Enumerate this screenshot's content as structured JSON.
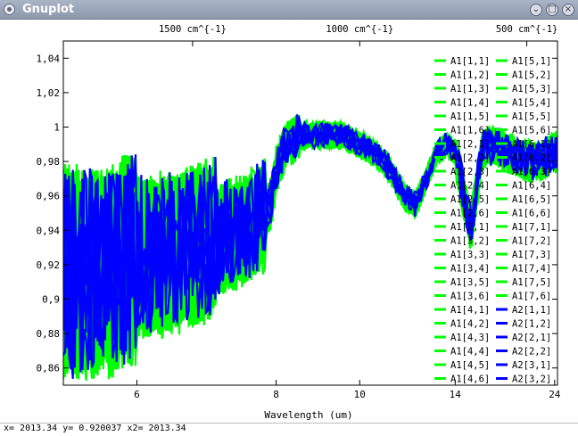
{
  "window": {
    "title": "Gnuplot"
  },
  "status": "x= 2013.34 y= 0.920037 x2= 2013.34",
  "colors": {
    "series_a1": "#00ff00",
    "series_a2": "#0000ff",
    "background": "#ffffff"
  },
  "chart_data": {
    "type": "line",
    "xlabel": "Wavelength (um)",
    "ylabel": "",
    "x_scale": "reciprocal",
    "xlim": [
      5.3,
      24.5
    ],
    "ylim": [
      0.85,
      1.05
    ],
    "grid": false,
    "legend_position": "top-right",
    "x_ticks": [
      6,
      8,
      10,
      14,
      24
    ],
    "x_tick_labels": [
      "6",
      "8",
      "10",
      "14",
      "24"
    ],
    "x2_ticks": [
      1500,
      1000,
      500
    ],
    "x2_tick_labels": [
      "1500 cm^{-1}",
      "1000 cm^{-1}",
      "500 cm^{-1}"
    ],
    "y_ticks": [
      0.86,
      0.88,
      0.9,
      0.92,
      0.94,
      0.96,
      0.98,
      1.0,
      1.02,
      1.04
    ],
    "y_tick_labels": [
      "0,86",
      "0,88",
      "0,9",
      "0,92",
      "0,94",
      "0,96",
      "0,98",
      "1",
      "1,02",
      "1,04"
    ],
    "profile": {
      "x": [
        5.4,
        5.7,
        6.0,
        6.3,
        6.6,
        7.0,
        7.4,
        7.7,
        7.9,
        8.0,
        8.2,
        8.5,
        9.0,
        9.5,
        10.0,
        10.5,
        11.0,
        11.5,
        12.0,
        12.5,
        13.0,
        13.5,
        14.0,
        14.5,
        15.0,
        15.3,
        15.8,
        16.2,
        17.0,
        18.0,
        20.0,
        22.0,
        23.5,
        24.0
      ],
      "y": [
        0.915,
        0.915,
        0.925,
        0.925,
        0.93,
        0.935,
        0.94,
        0.945,
        0.955,
        0.975,
        0.99,
        0.995,
        0.995,
        0.995,
        0.99,
        0.985,
        0.975,
        0.96,
        0.955,
        0.97,
        0.985,
        0.99,
        0.985,
        0.96,
        0.94,
        0.96,
        0.985,
        0.99,
        0.988,
        0.985,
        0.98,
        0.98,
        0.985,
        0.985
      ]
    },
    "series": [
      {
        "name": "A1[1,1]",
        "group": "A1"
      },
      {
        "name": "A1[1,2]",
        "group": "A1"
      },
      {
        "name": "A1[1,3]",
        "group": "A1"
      },
      {
        "name": "A1[1,4]",
        "group": "A1"
      },
      {
        "name": "A1[1,5]",
        "group": "A1"
      },
      {
        "name": "A1[1,6]",
        "group": "A1"
      },
      {
        "name": "A1[2,1]",
        "group": "A1"
      },
      {
        "name": "A1[2,2]",
        "group": "A1"
      },
      {
        "name": "A1[2,3]",
        "group": "A1"
      },
      {
        "name": "A1[2,4]",
        "group": "A1"
      },
      {
        "name": "A1[2,5]",
        "group": "A1"
      },
      {
        "name": "A1[2,6]",
        "group": "A1"
      },
      {
        "name": "A1[3,1]",
        "group": "A1"
      },
      {
        "name": "A1[3,2]",
        "group": "A1"
      },
      {
        "name": "A1[3,3]",
        "group": "A1"
      },
      {
        "name": "A1[3,4]",
        "group": "A1"
      },
      {
        "name": "A1[3,5]",
        "group": "A1"
      },
      {
        "name": "A1[3,6]",
        "group": "A1"
      },
      {
        "name": "A1[4,1]",
        "group": "A1"
      },
      {
        "name": "A1[4,2]",
        "group": "A1"
      },
      {
        "name": "A1[4,3]",
        "group": "A1"
      },
      {
        "name": "A1[4,4]",
        "group": "A1"
      },
      {
        "name": "A1[4,5]",
        "group": "A1"
      },
      {
        "name": "A1[4,6]",
        "group": "A1"
      },
      {
        "name": "A1[5,1]",
        "group": "A1"
      },
      {
        "name": "A1[5,2]",
        "group": "A1"
      },
      {
        "name": "A1[5,3]",
        "group": "A1"
      },
      {
        "name": "A1[5,4]",
        "group": "A1"
      },
      {
        "name": "A1[5,5]",
        "group": "A1"
      },
      {
        "name": "A1[5,6]",
        "group": "A1"
      },
      {
        "name": "A1[6,1]",
        "group": "A1"
      },
      {
        "name": "A1[6,2]",
        "group": "A1"
      },
      {
        "name": "A1[6,3]",
        "group": "A1"
      },
      {
        "name": "A1[6,4]",
        "group": "A1"
      },
      {
        "name": "A1[6,5]",
        "group": "A1"
      },
      {
        "name": "A1[6,6]",
        "group": "A1"
      },
      {
        "name": "A1[7,1]",
        "group": "A1"
      },
      {
        "name": "A1[7,2]",
        "group": "A1"
      },
      {
        "name": "A1[7,3]",
        "group": "A1"
      },
      {
        "name": "A1[7,4]",
        "group": "A1"
      },
      {
        "name": "A1[7,5]",
        "group": "A1"
      },
      {
        "name": "A1[7,6]",
        "group": "A1"
      },
      {
        "name": "A2[1,1]",
        "group": "A2"
      },
      {
        "name": "A2[1,2]",
        "group": "A2"
      },
      {
        "name": "A2[2,1]",
        "group": "A2"
      },
      {
        "name": "A2[2,2]",
        "group": "A2"
      },
      {
        "name": "A2[3,1]",
        "group": "A2"
      },
      {
        "name": "A2[3,2]",
        "group": "A2"
      }
    ]
  }
}
